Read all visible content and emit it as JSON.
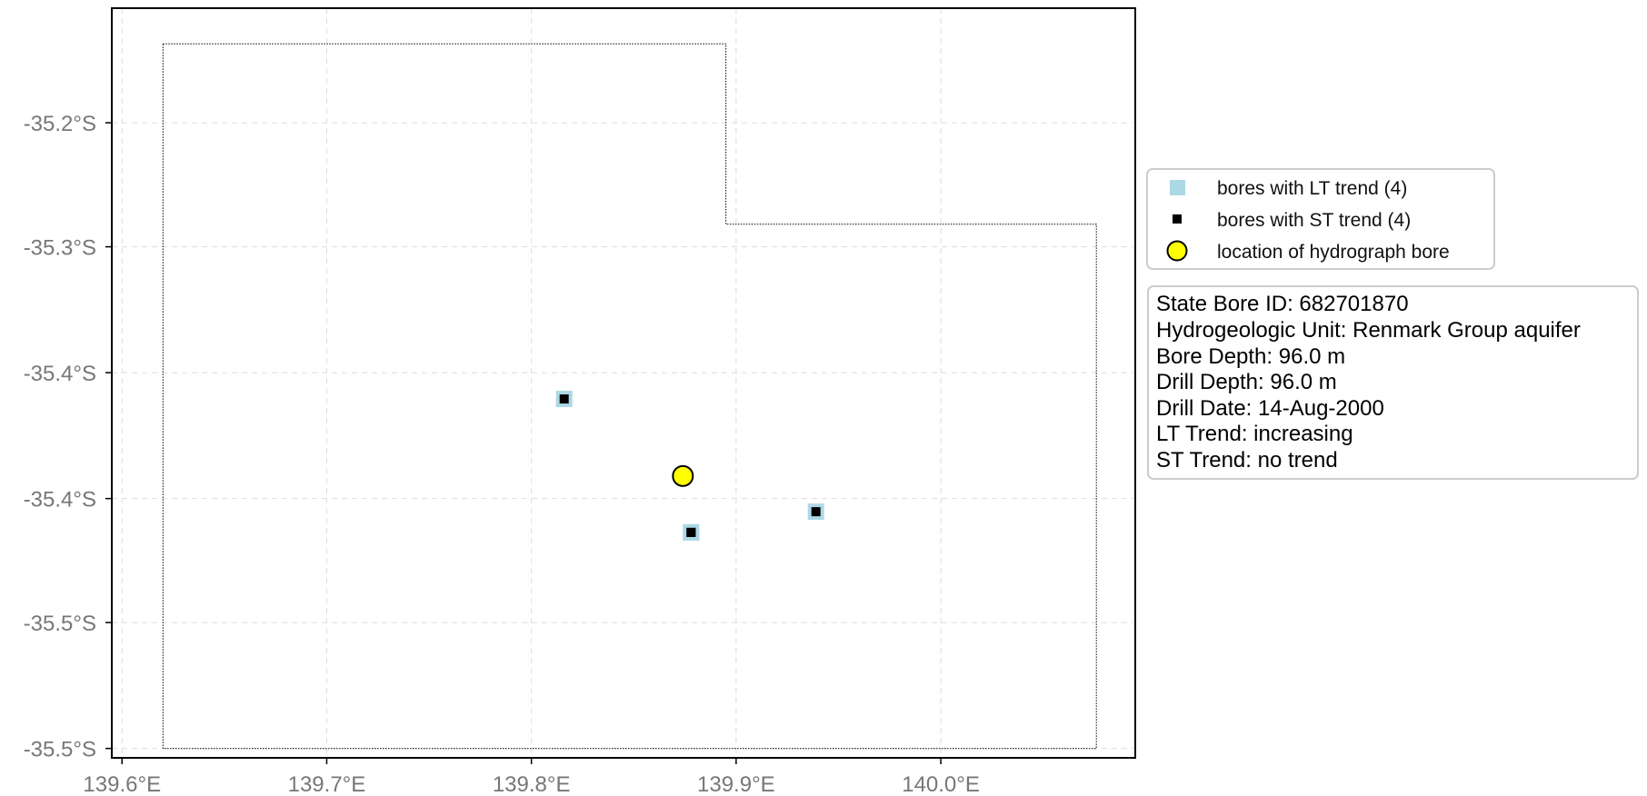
{
  "chart_data": {
    "type": "scatter",
    "title": "",
    "xlabel": "",
    "ylabel": "",
    "xlim": [
      139.595,
      140.095
    ],
    "ylim": [
      -35.505,
      -35.106
    ],
    "grid": true,
    "x_ticks": [
      139.6,
      139.7,
      139.8,
      139.9,
      140.0
    ],
    "x_tick_labels": [
      "139.6°E",
      "139.7°E",
      "139.8°E",
      "139.9°E",
      "140.0°E"
    ],
    "y_ticks": [
      -35.167,
      -35.233,
      -35.3,
      -35.367,
      -35.433,
      -35.5
    ],
    "y_tick_labels": [
      "-35.2°S",
      "-35.3°S",
      "-35.4°S",
      "-35.4°S",
      "-35.5°S",
      "-35.5°S"
    ],
    "boundary": {
      "name": "",
      "points": [
        [
          139.62,
          -35.125
        ],
        [
          139.895,
          -35.125
        ],
        [
          139.895,
          -35.221
        ],
        [
          140.076,
          -35.221
        ],
        [
          140.076,
          -35.5
        ],
        [
          139.62,
          -35.5
        ]
      ]
    },
    "series": [
      {
        "name": "bores with LT trend (4)",
        "marker": "square",
        "color": "#add8e6",
        "points": [
          [
            139.816,
            -35.314
          ],
          [
            139.878,
            -35.385
          ],
          [
            139.939,
            -35.374
          ],
          [
            139.878,
            -35.385
          ]
        ]
      },
      {
        "name": "bores with ST trend (4)",
        "marker": "square",
        "color": "#000000",
        "points": [
          [
            139.816,
            -35.314
          ],
          [
            139.878,
            -35.385
          ],
          [
            139.939,
            -35.374
          ],
          [
            139.878,
            -35.385
          ]
        ]
      },
      {
        "name": "location of hydrograph bore",
        "marker": "circle",
        "color": "#ffff00",
        "points": [
          [
            139.874,
            -35.355
          ]
        ]
      }
    ],
    "legend_position": "right"
  },
  "legend": {
    "items": [
      {
        "label": "bores with LT trend (4)",
        "icon": "lightblue-square-icon"
      },
      {
        "label": "bores with ST trend (4)",
        "icon": "black-square-icon"
      },
      {
        "label": "location of hydrograph bore",
        "icon": "yellow-circle-icon"
      }
    ]
  },
  "info_box": {
    "lines": [
      "State Bore ID: 682701870",
      "Hydrogeologic Unit: Renmark Group aquifer",
      "Bore Depth: 96.0 m",
      "Drill Depth: 96.0 m",
      "Drill Date: 14-Aug-2000",
      "LT Trend: increasing",
      "ST Trend: no trend"
    ]
  },
  "colors": {
    "lt_marker": "#add8e6",
    "st_marker": "#000000",
    "hydrograph_marker": "#ffff00",
    "grid": "#dddddd",
    "tick_label": "#777777"
  }
}
